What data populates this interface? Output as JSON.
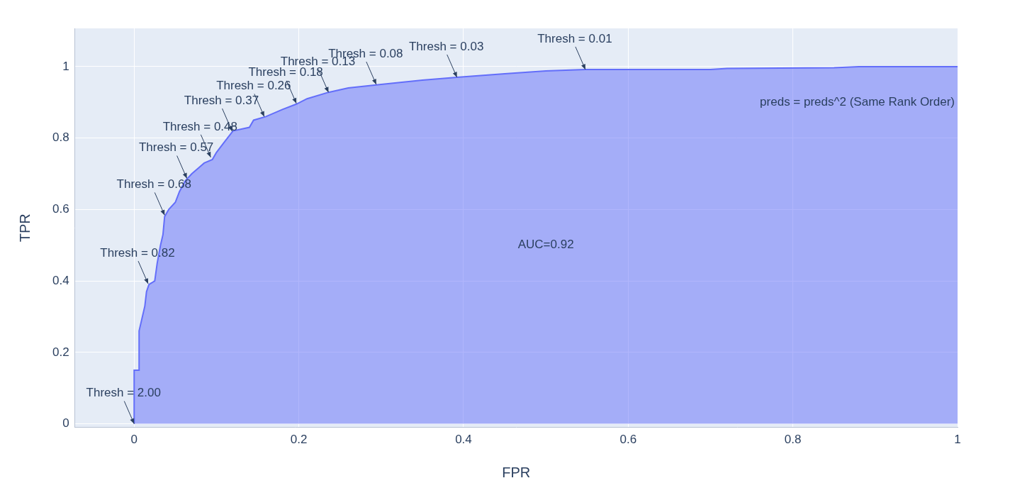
{
  "chart_data": {
    "type": "area",
    "x_label": "FPR",
    "y_label": "TPR",
    "color": "#636efa",
    "grid": true,
    "xlim": [
      -0.072,
      1
    ],
    "ylim": [
      -0.01,
      1.107
    ],
    "xticks": [
      0,
      0.2,
      0.4,
      0.6,
      0.8,
      1
    ],
    "yticks": [
      0,
      0.2,
      0.4,
      0.6,
      0.8,
      1
    ],
    "x": [
      0,
      0,
      0.006,
      0.006,
      0.01,
      0.013,
      0.015,
      0.018,
      0.025,
      0.028,
      0.032,
      0.035,
      0.037,
      0.042,
      0.05,
      0.055,
      0.062,
      0.07,
      0.08,
      0.085,
      0.095,
      0.1,
      0.11,
      0.12,
      0.14,
      0.145,
      0.16,
      0.18,
      0.197,
      0.21,
      0.236,
      0.26,
      0.28,
      0.3,
      0.35,
      0.392,
      0.45,
      0.5,
      0.548,
      0.7,
      0.72,
      0.85,
      0.88,
      1
    ],
    "values": [
      0,
      0.15,
      0.15,
      0.26,
      0.3,
      0.33,
      0.37,
      0.39,
      0.4,
      0.45,
      0.5,
      0.53,
      0.58,
      0.6,
      0.62,
      0.65,
      0.68,
      0.7,
      0.72,
      0.73,
      0.74,
      0.76,
      0.79,
      0.82,
      0.83,
      0.85,
      0.86,
      0.88,
      0.895,
      0.91,
      0.928,
      0.94,
      0.945,
      0.95,
      0.962,
      0.97,
      0.98,
      0.988,
      0.992,
      0.992,
      0.995,
      0.997,
      1,
      1
    ],
    "annotations": [
      {
        "text": "Thresh = 2.00",
        "x": 0,
        "y": 0
      },
      {
        "text": "Thresh = 0.82",
        "x": 0.017,
        "y": 0.392
      },
      {
        "text": "Thresh = 0.68",
        "x": 0.037,
        "y": 0.584
      },
      {
        "text": "Thresh = 0.57",
        "x": 0.064,
        "y": 0.687
      },
      {
        "text": "Thresh = 0.48",
        "x": 0.093,
        "y": 0.746
      },
      {
        "text": "Thresh = 0.37",
        "x": 0.119,
        "y": 0.819
      },
      {
        "text": "Thresh = 0.26",
        "x": 0.158,
        "y": 0.86
      },
      {
        "text": "Thresh = 0.18",
        "x": 0.197,
        "y": 0.897
      },
      {
        "text": "Thresh = 0.13",
        "x": 0.236,
        "y": 0.928
      },
      {
        "text": "Thresh = 0.08",
        "x": 0.294,
        "y": 0.95
      },
      {
        "text": "Thresh = 0.03",
        "x": 0.392,
        "y": 0.97
      },
      {
        "text": "Thresh = 0.01",
        "x": 0.548,
        "y": 0.992
      }
    ],
    "text_labels": [
      {
        "text": "AUC=0.92",
        "x": 0.5,
        "y": 0.5
      },
      {
        "text": "preds = preds^2 (Same Rank Order)",
        "x": 0.995,
        "y": 0.9
      }
    ]
  }
}
